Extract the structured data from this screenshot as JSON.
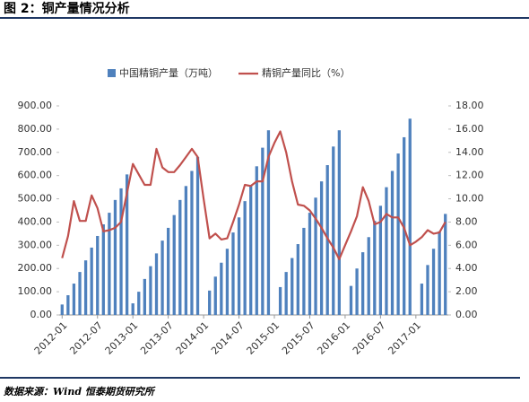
{
  "chart_data": {
    "type": "bar-line",
    "title": "图 2：铜产量情况分析",
    "source": "数据来源：Wind 恒泰期货研究所",
    "categories": [
      "2012-01",
      null,
      null,
      null,
      null,
      null,
      "2012-07",
      null,
      null,
      null,
      null,
      null,
      "2013-01",
      null,
      null,
      null,
      null,
      null,
      "2013-07",
      null,
      null,
      null,
      null,
      null,
      "2014-01",
      null,
      null,
      null,
      null,
      null,
      "2014-07",
      null,
      null,
      null,
      null,
      null,
      "2015-01",
      null,
      null,
      null,
      null,
      null,
      "2015-07",
      null,
      null,
      null,
      null,
      null,
      "2016-01",
      null,
      null,
      null,
      null,
      null,
      "2016-07",
      null,
      null,
      null,
      null,
      null,
      "2017-01",
      null,
      null,
      null,
      null,
      null
    ],
    "series": [
      {
        "name": "中国精铜产量（万吨）",
        "type": "bar",
        "axis": "y",
        "color": "#4f81bd",
        "values": [
          45,
          85,
          135,
          185,
          235,
          290,
          340,
          390,
          440,
          495,
          545,
          605,
          50,
          100,
          155,
          210,
          265,
          320,
          375,
          430,
          495,
          555,
          620,
          680,
          null,
          105,
          165,
          225,
          285,
          355,
          420,
          490,
          560,
          640,
          720,
          795,
          null,
          120,
          185,
          245,
          305,
          375,
          440,
          505,
          575,
          645,
          725,
          795,
          null,
          125,
          200,
          270,
          335,
          405,
          470,
          550,
          620,
          695,
          765,
          845,
          null,
          135,
          215,
          285,
          360,
          435
        ]
      },
      {
        "name": "精铜产量同比（%）",
        "type": "line",
        "axis": "y2",
        "color": "#c0504d",
        "values": [
          4.9,
          6.8,
          9.8,
          8.1,
          8.1,
          10.3,
          9.2,
          7.2,
          7.3,
          7.5,
          8.0,
          10.5,
          13.0,
          12.1,
          11.2,
          11.2,
          14.3,
          12.7,
          12.3,
          12.3,
          12.9,
          13.6,
          14.3,
          13.6,
          10.0,
          6.6,
          7.0,
          6.5,
          6.6,
          8.0,
          9.5,
          11.2,
          11.1,
          11.5,
          11.5,
          13.6,
          14.8,
          15.8,
          14.0,
          11.5,
          9.5,
          9.4,
          9.0,
          8.3,
          7.5,
          6.6,
          5.8,
          4.8,
          6.0,
          7.2,
          8.5,
          11.0,
          9.8,
          7.8,
          8.0,
          8.7,
          8.4,
          8.4,
          7.5,
          6.0,
          6.3,
          6.7,
          7.3,
          7.0,
          7.1,
          8.0
        ]
      }
    ],
    "ylim": [
      0,
      900
    ],
    "yticks": [
      {
        "value": 0,
        "label": "0.00"
      },
      {
        "value": 100,
        "label": "100.00"
      },
      {
        "value": 200,
        "label": "200.00"
      },
      {
        "value": 300,
        "label": "300.00"
      },
      {
        "value": 400,
        "label": "400.00"
      },
      {
        "value": 500,
        "label": "500.00"
      },
      {
        "value": 600,
        "label": "600.00"
      },
      {
        "value": 700,
        "label": "700.00"
      },
      {
        "value": 800,
        "label": "800.00"
      },
      {
        "value": 900,
        "label": "900.00"
      }
    ],
    "y2lim": [
      0,
      18
    ],
    "y2ticks": [
      {
        "value": 0,
        "label": "0.00"
      },
      {
        "value": 2,
        "label": "2.00"
      },
      {
        "value": 4,
        "label": "4.00"
      },
      {
        "value": 6,
        "label": "6.00"
      },
      {
        "value": 8,
        "label": "8.00"
      },
      {
        "value": 10,
        "label": "10.00"
      },
      {
        "value": 12,
        "label": "12.00"
      },
      {
        "value": 14,
        "label": "14.00"
      },
      {
        "value": 16,
        "label": "16.00"
      },
      {
        "value": 18,
        "label": "18.00"
      }
    ],
    "grid": false,
    "legend": "top"
  }
}
